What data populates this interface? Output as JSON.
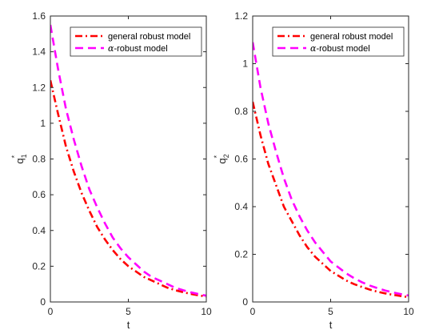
{
  "colors": {
    "general": "#ff0000",
    "alpha": "#ff00ff",
    "axis": "#262626"
  },
  "chart_data": [
    {
      "type": "line",
      "title": "",
      "xlabel": "t",
      "ylabel": "q",
      "ylabel_sub": "1",
      "ylabel_sup": "*",
      "xlim": [
        0,
        10
      ],
      "ylim": [
        0,
        1.6
      ],
      "xticks": [
        "0",
        "5",
        "10"
      ],
      "yticks": [
        "0",
        "0.2",
        "0.4",
        "0.6",
        "0.8",
        "1",
        "1.2",
        "1.4",
        "1.6"
      ],
      "grid": false,
      "legend_position": "top-right",
      "series": [
        {
          "name": "general robust model",
          "style": "dash-dot",
          "x": [
            0,
            0.5,
            1,
            1.5,
            2,
            2.5,
            3,
            3.5,
            4,
            4.5,
            5,
            5.5,
            6,
            6.5,
            7,
            7.5,
            8,
            8.5,
            9,
            9.5,
            10
          ],
          "y": [
            1.24,
            1.05,
            0.87,
            0.73,
            0.61,
            0.51,
            0.42,
            0.35,
            0.29,
            0.24,
            0.2,
            0.17,
            0.14,
            0.12,
            0.1,
            0.08,
            0.066,
            0.055,
            0.045,
            0.037,
            0.03
          ]
        },
        {
          "name": "α-robust model",
          "name_symbol": "α",
          "name_text": "-robust model",
          "style": "dashed",
          "x": [
            0,
            0.5,
            1,
            1.5,
            2,
            2.5,
            3,
            3.5,
            4,
            4.5,
            5,
            5.5,
            6,
            6.5,
            7,
            7.5,
            8,
            8.5,
            9,
            9.5,
            10
          ],
          "y": [
            1.55,
            1.3,
            1.08,
            0.91,
            0.76,
            0.63,
            0.53,
            0.44,
            0.36,
            0.3,
            0.25,
            0.21,
            0.17,
            0.14,
            0.12,
            0.1,
            0.08,
            0.066,
            0.054,
            0.044,
            0.035
          ]
        }
      ]
    },
    {
      "type": "line",
      "title": "",
      "xlabel": "t",
      "ylabel": "q",
      "ylabel_sub": "2",
      "ylabel_sup": "*",
      "xlim": [
        0,
        10
      ],
      "ylim": [
        0,
        1.2
      ],
      "xticks": [
        "0",
        "5",
        "10"
      ],
      "yticks": [
        "0",
        "0.2",
        "0.4",
        "0.6",
        "0.8",
        "1",
        "1.2"
      ],
      "grid": false,
      "legend_position": "top-right",
      "series": [
        {
          "name": "general robust model",
          "style": "dash-dot",
          "x": [
            0,
            0.5,
            1,
            1.5,
            2,
            2.5,
            3,
            3.5,
            4,
            4.5,
            5,
            5.5,
            6,
            6.5,
            7,
            7.5,
            8,
            8.5,
            9,
            9.5,
            10
          ],
          "y": [
            0.84,
            0.7,
            0.58,
            0.49,
            0.4,
            0.34,
            0.28,
            0.23,
            0.19,
            0.16,
            0.13,
            0.11,
            0.09,
            0.075,
            0.063,
            0.052,
            0.043,
            0.036,
            0.03,
            0.025,
            0.02
          ]
        },
        {
          "name": "α-robust model",
          "name_symbol": "α",
          "name_text": "-robust model",
          "style": "dashed",
          "x": [
            0,
            0.5,
            1,
            1.5,
            2,
            2.5,
            3,
            3.5,
            4,
            4.5,
            5,
            5.5,
            6,
            6.5,
            7,
            7.5,
            8,
            8.5,
            9,
            9.5,
            10
          ],
          "y": [
            1.09,
            0.9,
            0.75,
            0.63,
            0.52,
            0.43,
            0.36,
            0.3,
            0.25,
            0.21,
            0.17,
            0.145,
            0.12,
            0.1,
            0.083,
            0.069,
            0.058,
            0.048,
            0.04,
            0.033,
            0.027
          ]
        }
      ]
    }
  ]
}
